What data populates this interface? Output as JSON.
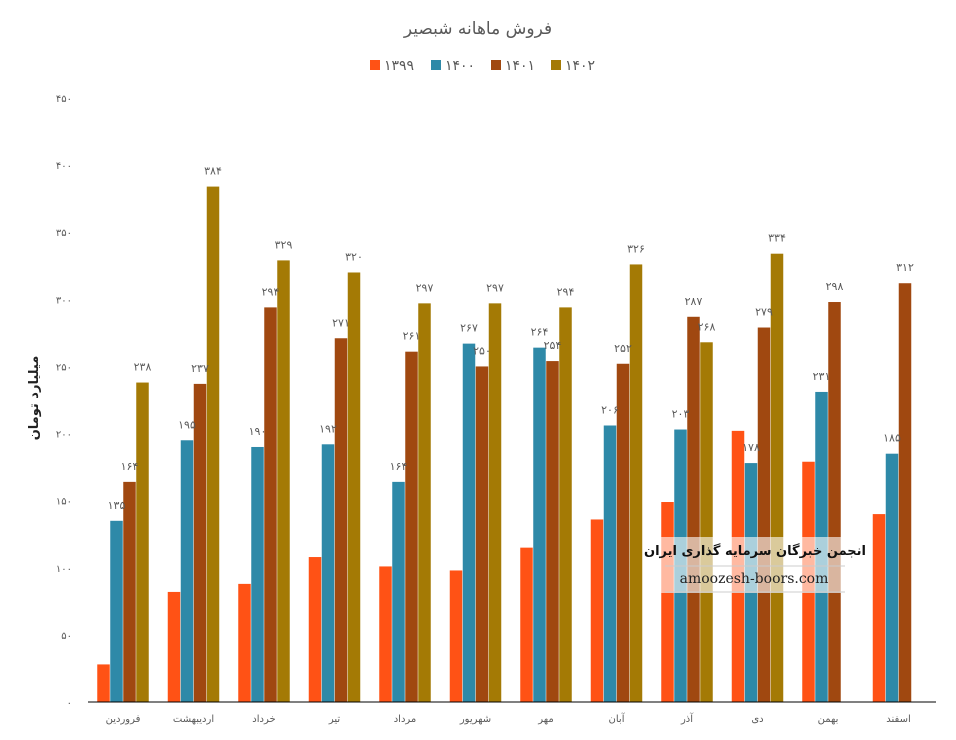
{
  "chart_data": {
    "type": "bar",
    "title": "فروش ماهانه شبصیر",
    "ylabel": "میلیارد تومان",
    "ylim": [
      0,
      450
    ],
    "yticks": [
      0,
      50,
      100,
      150,
      200,
      250,
      300,
      350,
      400,
      450
    ],
    "ytick_labels": [
      "۰",
      "۵۰",
      "۱۰۰",
      "۱۵۰",
      "۲۰۰",
      "۲۵۰",
      "۳۰۰",
      "۳۵۰",
      "۴۰۰",
      "۴۵۰"
    ],
    "grid": false,
    "legend_position": "top",
    "categories": [
      "فروردین",
      "اردیبهشت",
      "خرداد",
      "تیر",
      "مرداد",
      "شهریور",
      "مهر",
      "آبان",
      "آذر",
      "دی",
      "بهمن",
      "اسفند"
    ],
    "series": [
      {
        "name": "۱۳۹۹",
        "color": "#FF5215",
        "values": [
          28,
          82,
          88,
          108,
          101,
          98,
          115,
          136,
          149,
          202,
          179,
          140
        ],
        "labels": [
          null,
          null,
          null,
          null,
          null,
          null,
          null,
          null,
          null,
          null,
          null,
          null
        ]
      },
      {
        "name": "۱۴۰۰",
        "color": "#2E89A8",
        "values": [
          135,
          195,
          190,
          192,
          164,
          267,
          264,
          206,
          203,
          178,
          231,
          185
        ],
        "labels": [
          "۱۳۵",
          "۱۹۵",
          "۱۹۰",
          "۱۹۲",
          "۱۶۴",
          "۲۶۷",
          "۲۶۴",
          "۲۰۶",
          "۲۰۳",
          "۱۷۸",
          "۲۳۱",
          "۱۸۵"
        ]
      },
      {
        "name": "۱۴۰۱",
        "color": "#A04810",
        "values": [
          164,
          237,
          294,
          271,
          261,
          250,
          254,
          252,
          287,
          279,
          298,
          312
        ],
        "labels": [
          "۱۶۴",
          "۲۳۷",
          "۲۹۴",
          "۲۷۱",
          "۲۶۱",
          "۲۵۰",
          "۲۵۴",
          "۲۵۲",
          "۲۸۷",
          "۲۷۹",
          "۲۹۸",
          "۳۱۲"
        ]
      },
      {
        "name": "۱۴۰۲",
        "color": "#A47A05",
        "values": [
          238,
          384,
          329,
          320,
          297,
          297,
          294,
          326,
          268,
          334,
          null,
          null
        ],
        "labels": [
          "۲۳۸",
          "۳۸۴",
          "۳۲۹",
          "۳۲۰",
          "۲۹۷",
          "۲۹۷",
          "۲۹۴",
          "۳۲۶",
          "۲۶۸",
          "۳۳۴",
          null,
          null
        ]
      }
    ]
  },
  "watermark": {
    "title": "انجمن خبرگان سرمایه گذاری ایران",
    "url": "amoozesh-boors.com"
  }
}
